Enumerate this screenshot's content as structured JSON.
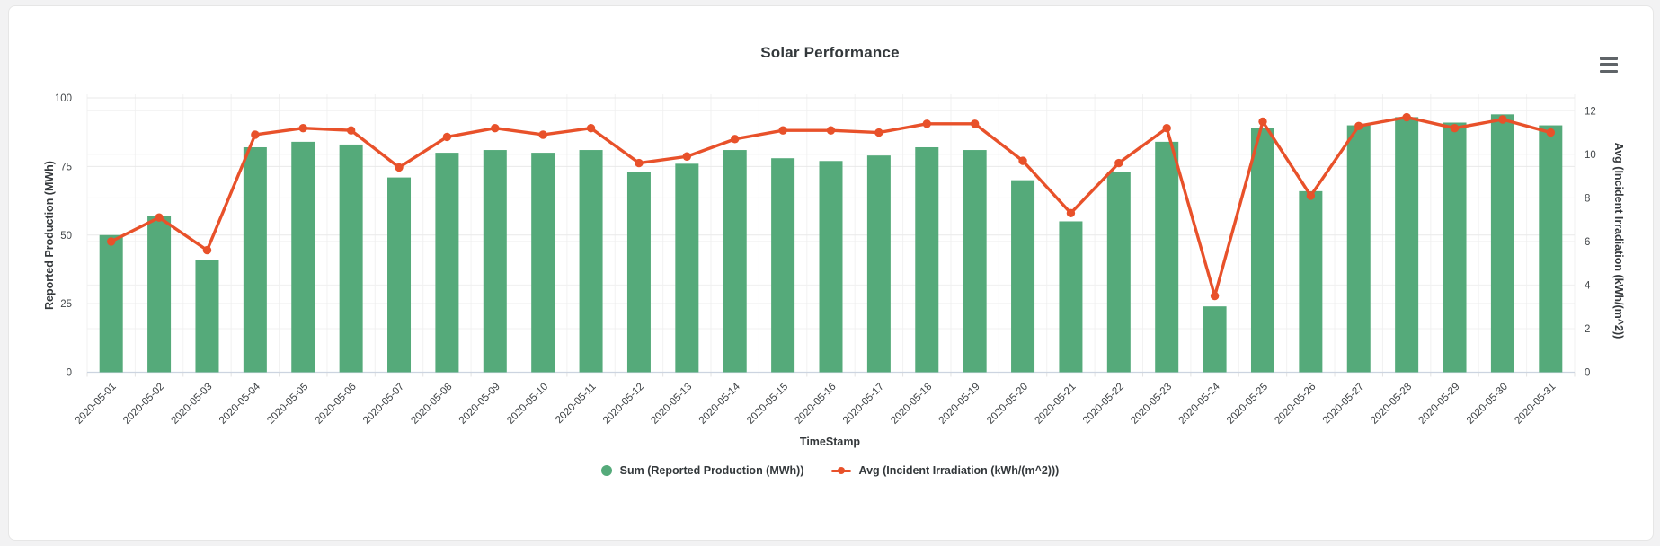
{
  "page": {
    "background_color": "#f2f2f3",
    "card_background_color": "#ffffff"
  },
  "toolbar": {
    "menu_icon": "hamburger-menu-icon"
  },
  "chart_data": {
    "type": "combo",
    "title": "Solar Performance",
    "xlabel": "TimeStamp",
    "ylabel_left": "Reported Production (MWh)",
    "ylabel_right": "Avg (Incident Irradiation (kWh/(m^2))",
    "ylim_left": [
      0,
      100
    ],
    "ylim_right": [
      0,
      12
    ],
    "yticks_left": [
      0,
      25,
      50,
      75,
      100
    ],
    "yticks_right": [
      0,
      2,
      4,
      6,
      8,
      10,
      12
    ],
    "grid": true,
    "legend_position": "bottom",
    "categories": [
      "2020-05-01",
      "2020-05-02",
      "2020-05-03",
      "2020-05-04",
      "2020-05-05",
      "2020-05-06",
      "2020-05-07",
      "2020-05-08",
      "2020-05-09",
      "2020-05-10",
      "2020-05-11",
      "2020-05-12",
      "2020-05-13",
      "2020-05-14",
      "2020-05-15",
      "2020-05-16",
      "2020-05-17",
      "2020-05-18",
      "2020-05-19",
      "2020-05-20",
      "2020-05-21",
      "2020-05-22",
      "2020-05-23",
      "2020-05-24",
      "2020-05-25",
      "2020-05-26",
      "2020-05-27",
      "2020-05-28",
      "2020-05-29",
      "2020-05-30",
      "2020-05-31"
    ],
    "series": [
      {
        "name": "Sum (Reported Production (MWh))",
        "type": "bar",
        "axis": "left",
        "color": "#55aa7a",
        "values": [
          50,
          57,
          41,
          82,
          84,
          83,
          71,
          80,
          81,
          80,
          81,
          73,
          76,
          81,
          78,
          77,
          79,
          82,
          81,
          70,
          55,
          73,
          84,
          24,
          89,
          66,
          90,
          93,
          91,
          94,
          90
        ]
      },
      {
        "name": "Avg (Incident Irradiation (kWh/(m^2)))",
        "type": "line",
        "axis": "right",
        "color": "#e8512a",
        "values": [
          6.0,
          7.1,
          5.6,
          10.9,
          11.2,
          11.1,
          9.4,
          10.8,
          11.2,
          10.9,
          11.2,
          9.6,
          9.9,
          10.7,
          11.1,
          11.1,
          11.0,
          11.4,
          11.4,
          9.7,
          7.3,
          9.6,
          11.2,
          3.5,
          11.5,
          8.1,
          11.3,
          11.7,
          11.2,
          11.6,
          11.0
        ]
      }
    ],
    "colors": {
      "grid_line": "#e9e9e9",
      "minor_grid_line": "#f0f0f0",
      "vertical_grid_line": "#f2f2f2",
      "axis_base_line": "#ccd4e0",
      "tick_text": "#44484b"
    }
  }
}
